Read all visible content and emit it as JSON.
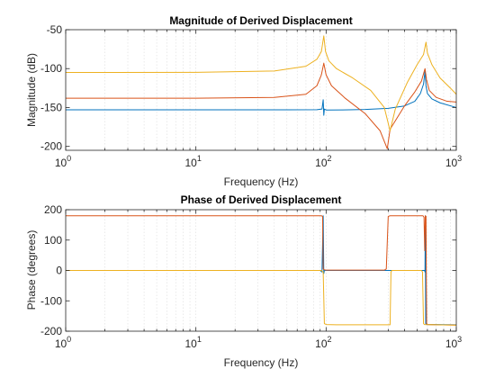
{
  "chart_data": [
    {
      "type": "line",
      "title": "Magnitude of Derived Displacement",
      "xlabel": "Frequency (Hz)",
      "ylabel": "Magnitude (dB)",
      "xscale": "log",
      "xlim": [
        1,
        1000
      ],
      "ylim": [
        -205,
        -50
      ],
      "xticks": [
        1,
        10,
        100,
        1000
      ],
      "xtick_labels": [
        [
          "10",
          "0"
        ],
        [
          "10",
          "1"
        ],
        [
          "10",
          "2"
        ],
        [
          "10",
          "3"
        ]
      ],
      "yticks": [
        -200,
        -150,
        -100,
        -50
      ],
      "ytick_labels": [
        "-200",
        "-150",
        "-100",
        "-50"
      ],
      "grid": "x-minor",
      "legend": "none",
      "series": [
        {
          "color": "#0072BD",
          "points": [
            [
              1,
              -153
            ],
            [
              10,
              -153
            ],
            [
              50,
              -153
            ],
            [
              85,
              -152.8
            ],
            [
              93,
              -152
            ],
            [
              95,
              -140
            ],
            [
              96,
              -160
            ],
            [
              97,
              -152
            ],
            [
              100,
              -153.2
            ],
            [
              150,
              -153
            ],
            [
              200,
              -152.5
            ],
            [
              300,
              -151
            ],
            [
              400,
              -148
            ],
            [
              480,
              -142
            ],
            [
              530,
              -132
            ],
            [
              560,
              -120
            ],
            [
              575,
              -103
            ],
            [
              585,
              -122
            ],
            [
              600,
              -132
            ],
            [
              650,
              -139
            ],
            [
              750,
              -144
            ],
            [
              1000,
              -150
            ]
          ]
        },
        {
          "color": "#D95319",
          "points": [
            [
              1,
              -138
            ],
            [
              10,
              -138
            ],
            [
              40,
              -137
            ],
            [
              70,
              -133
            ],
            [
              85,
              -122
            ],
            [
              92,
              -108
            ],
            [
              96,
              -93
            ],
            [
              100,
              -108
            ],
            [
              110,
              -122
            ],
            [
              140,
              -138
            ],
            [
              200,
              -158
            ],
            [
              260,
              -180
            ],
            [
              295,
              -203
            ],
            [
              310,
              -178
            ],
            [
              400,
              -148
            ],
            [
              480,
              -130
            ],
            [
              540,
              -116
            ],
            [
              575,
              -100
            ],
            [
              590,
              -114
            ],
            [
              620,
              -128
            ],
            [
              700,
              -137
            ],
            [
              850,
              -142
            ],
            [
              1000,
              -143
            ]
          ]
        },
        {
          "color": "#EDB120",
          "points": [
            [
              1,
              -105
            ],
            [
              10,
              -104.8
            ],
            [
              40,
              -103
            ],
            [
              70,
              -97
            ],
            [
              85,
              -88
            ],
            [
              92,
              -78
            ],
            [
              96,
              -58
            ],
            [
              99,
              -78
            ],
            [
              105,
              -90
            ],
            [
              120,
              -100
            ],
            [
              160,
              -112
            ],
            [
              220,
              -128
            ],
            [
              280,
              -150
            ],
            [
              310,
              -180
            ],
            [
              340,
              -152
            ],
            [
              420,
              -118
            ],
            [
              500,
              -95
            ],
            [
              560,
              -82
            ],
            [
              585,
              -66
            ],
            [
              600,
              -80
            ],
            [
              650,
              -95
            ],
            [
              750,
              -112
            ],
            [
              900,
              -125
            ],
            [
              1000,
              -133
            ]
          ]
        }
      ]
    },
    {
      "type": "line",
      "title": "Phase of Derived Displacement",
      "xlabel": "Frequency (Hz)",
      "ylabel": "Phase (degrees)",
      "xscale": "log",
      "xlim": [
        1,
        1000
      ],
      "ylim": [
        -200,
        200
      ],
      "xticks": [
        1,
        10,
        100,
        1000
      ],
      "xtick_labels": [
        [
          "10",
          "0"
        ],
        [
          "10",
          "1"
        ],
        [
          "10",
          "2"
        ],
        [
          "10",
          "3"
        ]
      ],
      "yticks": [
        -200,
        -100,
        0,
        100,
        200
      ],
      "ytick_labels": [
        "-200",
        "-100",
        "0",
        "100",
        "200"
      ],
      "grid": "x-minor",
      "legend": "none",
      "series": [
        {
          "color": "#0072BD",
          "points": [
            [
              1,
              0
            ],
            [
              90,
              0
            ],
            [
              93,
              -5
            ],
            [
              95,
              180
            ],
            [
              96,
              -10
            ],
            [
              97,
              0
            ],
            [
              100,
              0
            ],
            [
              570,
              0
            ],
            [
              575,
              -5
            ],
            [
              578,
              180
            ],
            [
              582,
              -175
            ],
            [
              590,
              -178
            ],
            [
              700,
              -178
            ],
            [
              1000,
              -179
            ]
          ]
        },
        {
          "color": "#D95319",
          "points": [
            [
              1,
              180
            ],
            [
              92,
              180
            ],
            [
              94,
              178
            ],
            [
              95,
              5
            ],
            [
              97,
              2
            ],
            [
              100,
              1
            ],
            [
              280,
              1
            ],
            [
              290,
              5
            ],
            [
              300,
              178
            ],
            [
              310,
              180
            ],
            [
              555,
              180
            ],
            [
              565,
              175
            ],
            [
              572,
              65
            ],
            [
              578,
              180
            ],
            [
              585,
              178
            ],
            [
              592,
              -175
            ],
            [
              600,
              -178
            ],
            [
              700,
              -179
            ],
            [
              1000,
              -180
            ]
          ]
        },
        {
          "color": "#EDB120",
          "points": [
            [
              1,
              0
            ],
            [
              92,
              0
            ],
            [
              95,
              -5
            ],
            [
              97,
              -175
            ],
            [
              100,
              -178
            ],
            [
              120,
              -179
            ],
            [
              310,
              -179
            ],
            [
              315,
              -5
            ],
            [
              320,
              0
            ],
            [
              540,
              0
            ],
            [
              550,
              -5
            ],
            [
              560,
              -175
            ],
            [
              570,
              -178
            ],
            [
              700,
              -179
            ],
            [
              1000,
              -180
            ]
          ]
        }
      ]
    }
  ]
}
